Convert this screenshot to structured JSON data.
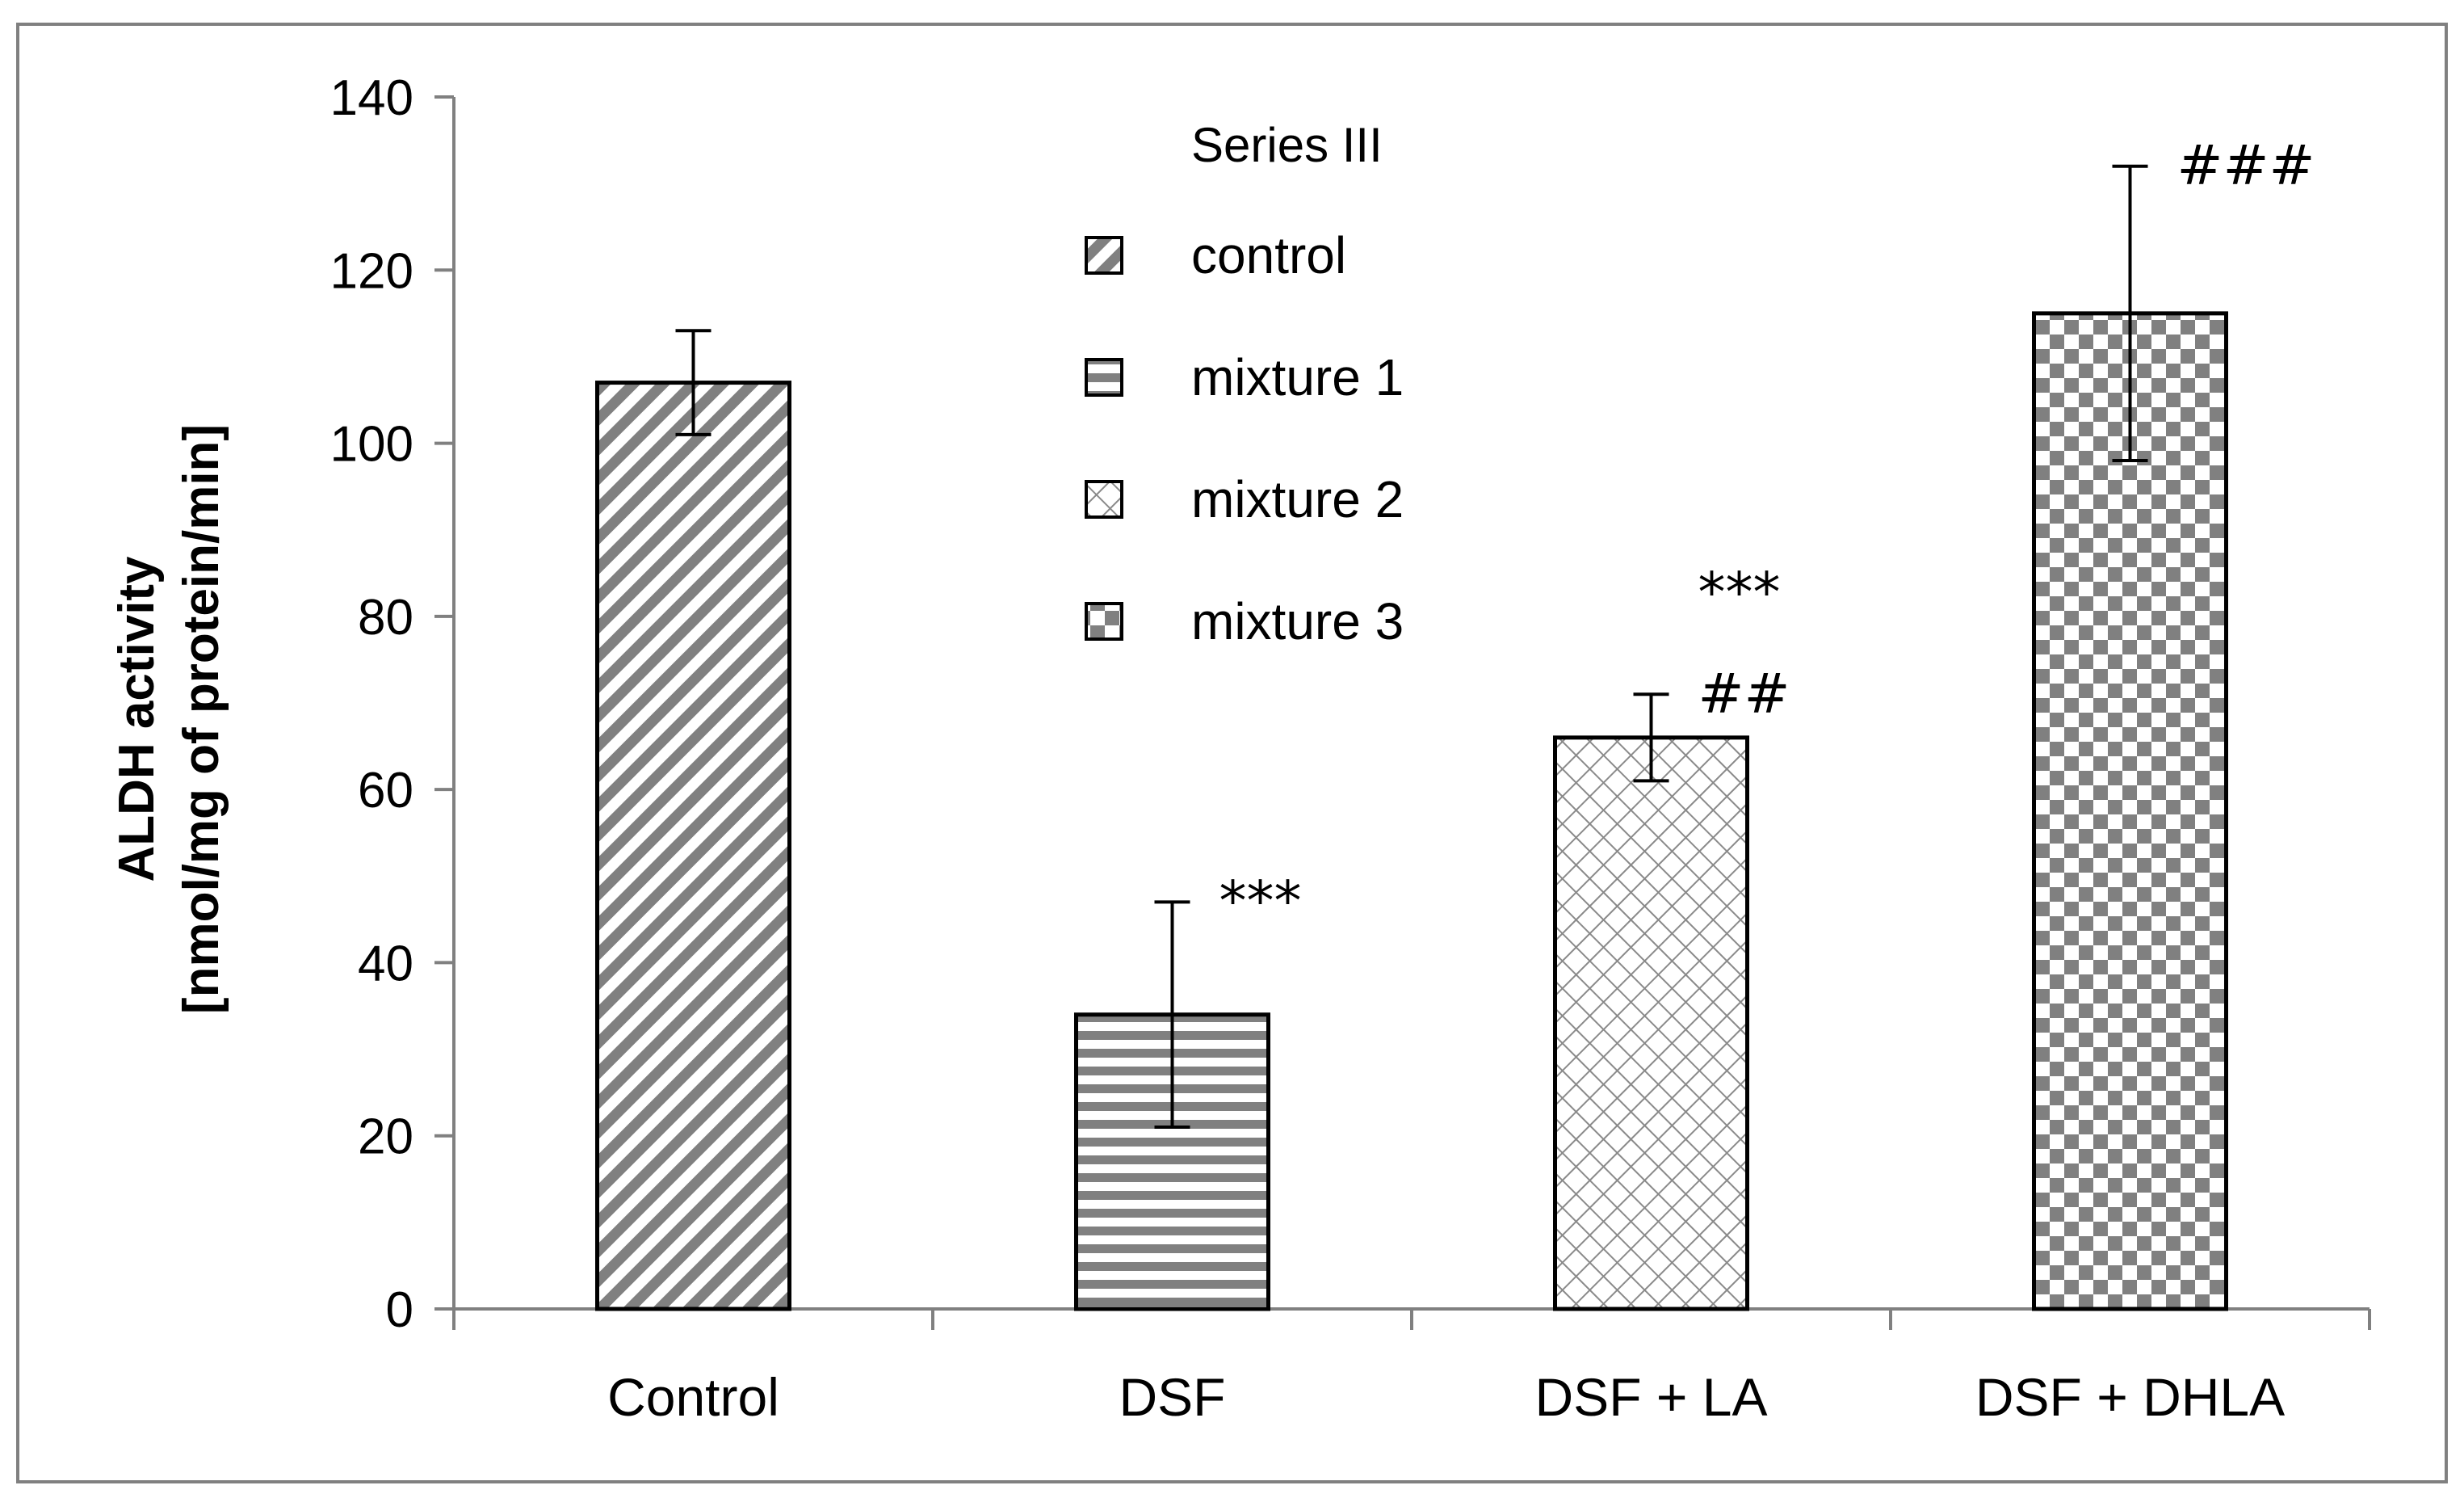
{
  "chart_data": {
    "type": "bar",
    "title": "",
    "xlabel": "",
    "ylabel_lines": [
      "ALDH activity",
      "[nmol/mg of protein/min]"
    ],
    "ylim": [
      0,
      140
    ],
    "yticks": [
      0,
      20,
      40,
      60,
      80,
      100,
      120,
      140
    ],
    "categories": [
      "Control",
      "DSF",
      "DSF + LA",
      "DSF + DHLA"
    ],
    "values": [
      107,
      34,
      66,
      115
    ],
    "errors": [
      6,
      13,
      5,
      17
    ],
    "annotations": [
      {
        "category": "Control",
        "lines": []
      },
      {
        "category": "DSF",
        "lines": [
          "***"
        ]
      },
      {
        "category": "DSF + LA",
        "lines": [
          "***",
          "##"
        ]
      },
      {
        "category": "DSF + DHLA",
        "lines": [
          "###"
        ]
      }
    ],
    "legend": {
      "title": "Series III",
      "position": "top-center",
      "entries": [
        {
          "label": "control",
          "pattern": "diagonal"
        },
        {
          "label": "mixture 1",
          "pattern": "horizontal"
        },
        {
          "label": "mixture 2",
          "pattern": "crosshatch"
        },
        {
          "label": "mixture 3",
          "pattern": "checker"
        }
      ]
    },
    "pattern_color": "#808080"
  }
}
